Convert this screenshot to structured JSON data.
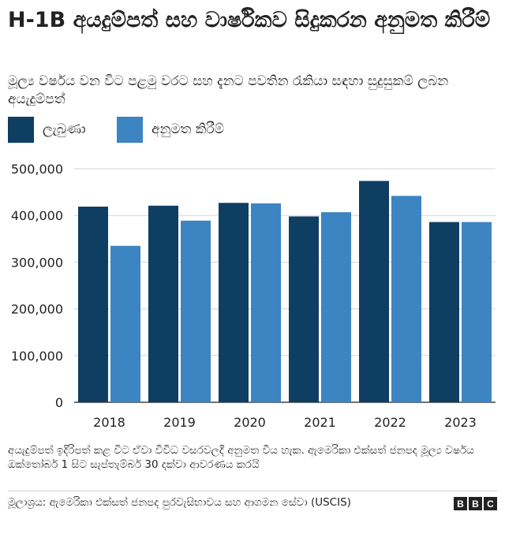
{
  "title": "H-1B අයදුම්පත් සහ වාර්ෂිකව සිදුකරන අනුමත කිරීම්",
  "subtitle": "මූල්‍ය වර්ෂය වන විට පළමු වරට සහ දැනට පවතින රැකියා සඳහා සුදුසුකම් ලබන අයැදුම්පත්",
  "legend": [
    {
      "label": "ලැබුණා",
      "color": "#0f3e63"
    },
    {
      "label": "අනුමත කිරීම්",
      "color": "#3d84c2"
    }
  ],
  "note": "අයැදුම්පත් ඉදිරිපත් කළ විට ඒවා විවිධ වසරවලදී අනුමත විය හැක. ඇමෙරිකා එක්සත් ජනපද මූල්‍ය වර්ෂය ඔක්තෝබර් 1 සිට සැප්තැම්බර් 30 දක්වා ආවරණය කරයි",
  "source": "මූලාශ්‍රය: ඇමෙරිකා එක්සත් ජනපද පුරවැසිභාවය සහ ආගමන සේවා (USCIS)",
  "logo": [
    "B",
    "B",
    "C"
  ],
  "chart_data": {
    "type": "bar",
    "categories": [
      "2018",
      "2019",
      "2020",
      "2021",
      "2022",
      "2023"
    ],
    "series": [
      {
        "name": "ලැබුණා",
        "color": "#0f3e63",
        "values": [
          419000,
          421000,
          427000,
          398000,
          474000,
          386000
        ]
      },
      {
        "name": "අනුමත කිරීම්",
        "color": "#3d84c2",
        "values": [
          335000,
          389000,
          426000,
          407000,
          442000,
          386000
        ]
      }
    ],
    "ylim": [
      0,
      500000
    ],
    "yticks": [
      0,
      100000,
      200000,
      300000,
      400000,
      500000
    ],
    "ytick_labels": [
      "0",
      "100,000",
      "200,000",
      "300,000",
      "400,000",
      "500,000"
    ],
    "grid": true,
    "legend_position": "top-left"
  }
}
